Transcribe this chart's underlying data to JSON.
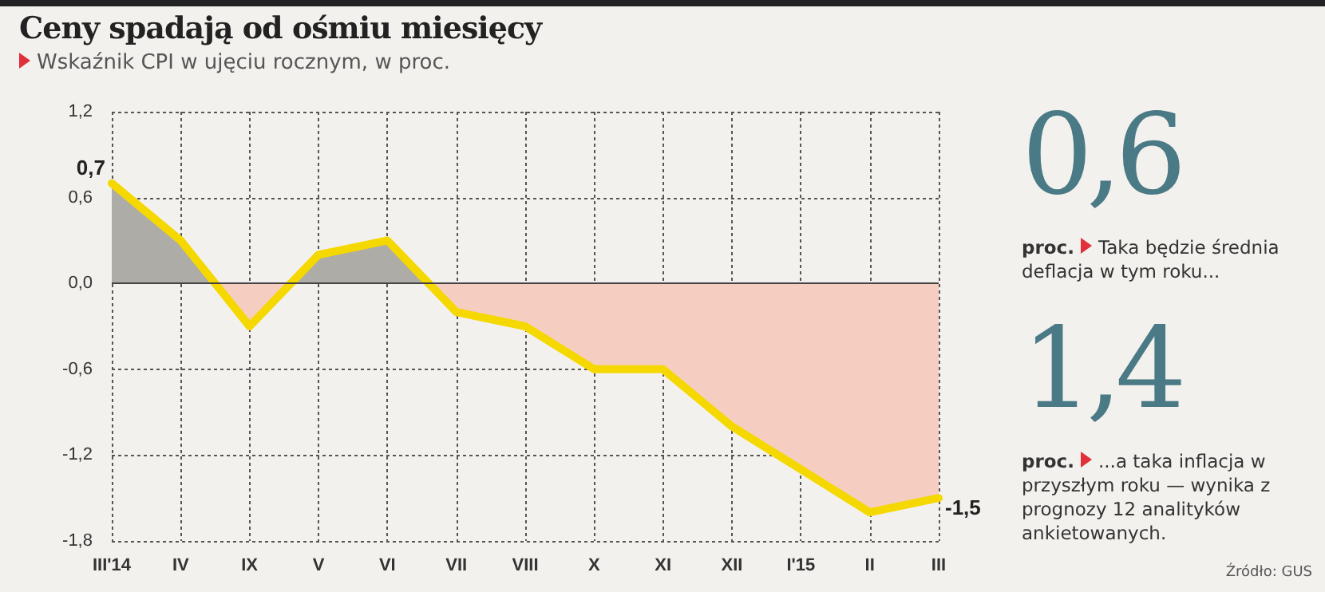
{
  "chart_data": {
    "type": "area",
    "title": "Ceny spadają od ośmiu miesięcy",
    "subtitle": "Wskaźnik CPI w ujęciu rocznym, w proc.",
    "categories": [
      "III'14",
      "IV",
      "IX",
      "V",
      "VI",
      "VII",
      "VIII",
      "X",
      "XI",
      "XII",
      "I'15",
      "II",
      "III"
    ],
    "series": [
      {
        "color": "#f5d800",
        "values": [
          0.7,
          0.3,
          -0.3,
          0.2,
          0.3,
          -0.2,
          -0.3,
          -0.6,
          -0.6,
          -1.0,
          -1.3,
          -1.6,
          -1.5
        ],
        "value_labels": [
          "0,7",
          null,
          null,
          null,
          null,
          null,
          null,
          null,
          null,
          null,
          null,
          null,
          "-1,5"
        ]
      }
    ],
    "ylim": [
      -1.8,
      1.2
    ],
    "yticks": [
      {
        "value": -1.8,
        "label": "-1,8"
      },
      {
        "value": -1.2,
        "label": "-1,2"
      },
      {
        "value": -0.6,
        "label": "-0,6"
      },
      {
        "value": 0,
        "label": "0,0"
      },
      {
        "value": 0.6,
        "label": "0,6"
      },
      {
        "value": 1.2,
        "label": "1,2"
      }
    ],
    "grid": true,
    "line_style": "solid",
    "ref_lines": [
      {
        "axis": "y",
        "value": 0,
        "color": "#444444",
        "line_style": "solid"
      }
    ],
    "annotations": [
      "0,6",
      "proc. Taka będzie średnia deflacja w tym roku...",
      "1,4",
      "proc. ...a taka inflacja w przyszłym roku — wynika z prognozy 12 analityków ankietowanych.",
      "Źródło: GUS"
    ]
  }
}
